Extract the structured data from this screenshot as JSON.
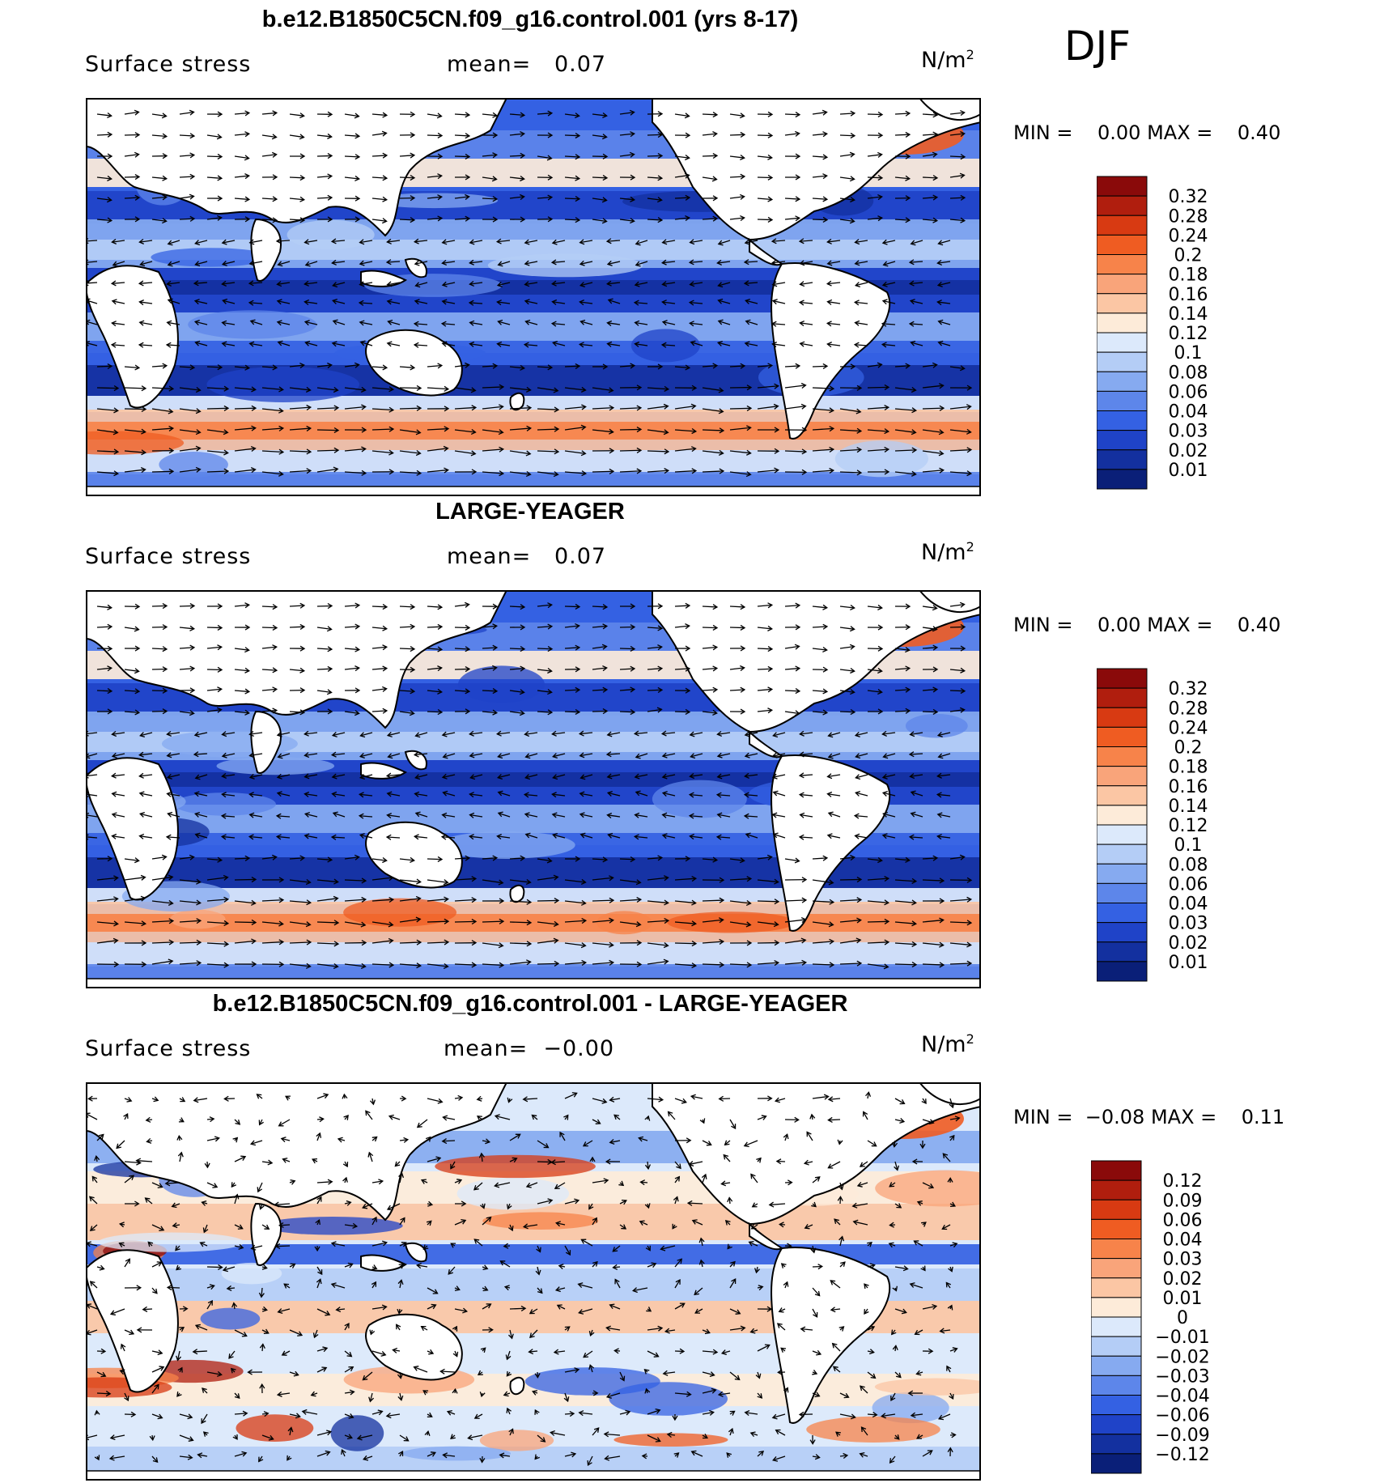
{
  "season": "DJF",
  "panels": [
    {
      "title": "b.e12.B1850C5CN.f09_g16.control.001 (yrs 8-17)",
      "variable": "Surface stress",
      "mean_label": "mean=",
      "mean_value": "0.07",
      "units": "N/m",
      "units_exp": "2",
      "min_label": "MIN =",
      "min_value": "0.00",
      "max_label": "MAX =",
      "max_value": "0.40"
    },
    {
      "title": "LARGE-YEAGER",
      "variable": "Surface stress",
      "mean_label": "mean=",
      "mean_value": "0.07",
      "units": "N/m",
      "units_exp": "2",
      "min_label": "MIN =",
      "min_value": "0.00",
      "max_label": "MAX =",
      "max_value": "0.40"
    },
    {
      "title": "b.e12.B1850C5CN.f09_g16.control.001 - LARGE-YEAGER",
      "variable": "Surface stress",
      "mean_label": "mean=",
      "mean_value": "−0.00",
      "units": "N/m",
      "units_exp": "2",
      "min_label": "MIN =",
      "min_value": "−0.08",
      "max_label": "MAX =",
      "max_value": "0.11"
    }
  ],
  "colors": {
    "ocean_base": "#3a64e8",
    "land": "#ffffff",
    "coast": "#000000",
    "diff_base": "#dbe8f8"
  },
  "chart_data": [
    {
      "type": "heatmap",
      "title": "b.e12.B1850C5CN.f09_g16.control.001 (yrs 8-17)",
      "variable": "Surface stress",
      "units": "N/m2",
      "mean": 0.07,
      "min": 0.0,
      "max": 0.4,
      "colorbar": {
        "labels": [
          "0.32",
          "0.28",
          "0.24",
          "0.2",
          "0.18",
          "0.16",
          "0.14",
          "0.12",
          "0.1",
          "0.08",
          "0.06",
          "0.04",
          "0.03",
          "0.02",
          "0.01"
        ],
        "colors": [
          "#8a0a0a",
          "#b01e0e",
          "#d83a12",
          "#ef5c22",
          "#f7834a",
          "#f9a47a",
          "#fbc6a4",
          "#fdebd9",
          "#dce9fb",
          "#b4cdf6",
          "#86aaf0",
          "#5d86ea",
          "#3461e3",
          "#1f43c8",
          "#13309f",
          "#0a1f78"
        ]
      },
      "vectors": true
    },
    {
      "type": "heatmap",
      "title": "LARGE-YEAGER",
      "variable": "Surface stress",
      "units": "N/m2",
      "mean": 0.07,
      "min": 0.0,
      "max": 0.4,
      "colorbar": {
        "labels": [
          "0.32",
          "0.28",
          "0.24",
          "0.2",
          "0.18",
          "0.16",
          "0.14",
          "0.12",
          "0.1",
          "0.08",
          "0.06",
          "0.04",
          "0.03",
          "0.02",
          "0.01"
        ],
        "colors": [
          "#8a0a0a",
          "#b01e0e",
          "#d83a12",
          "#ef5c22",
          "#f7834a",
          "#f9a47a",
          "#fbc6a4",
          "#fdebd9",
          "#dce9fb",
          "#b4cdf6",
          "#86aaf0",
          "#5d86ea",
          "#3461e3",
          "#1f43c8",
          "#13309f",
          "#0a1f78"
        ]
      },
      "vectors": true
    },
    {
      "type": "heatmap",
      "title": "b.e12.B1850C5CN.f09_g16.control.001 - LARGE-YEAGER",
      "variable": "Surface stress",
      "units": "N/m2",
      "mean": -0.0,
      "min": -0.08,
      "max": 0.11,
      "colorbar": {
        "labels": [
          "0.12",
          "0.09",
          "0.06",
          "0.04",
          "0.03",
          "0.02",
          "0.01",
          "0",
          "−0.01",
          "−0.02",
          "−0.03",
          "−0.04",
          "−0.06",
          "−0.09",
          "−0.12"
        ],
        "colors": [
          "#8a0a0a",
          "#b01e0e",
          "#d83a12",
          "#ef5c22",
          "#f7834a",
          "#f9a47a",
          "#fbc6a4",
          "#fdebd9",
          "#dce9fb",
          "#b4cdf6",
          "#86aaf0",
          "#5d86ea",
          "#3461e3",
          "#1f43c8",
          "#13309f",
          "#0a1f78"
        ]
      },
      "vectors": true
    }
  ]
}
